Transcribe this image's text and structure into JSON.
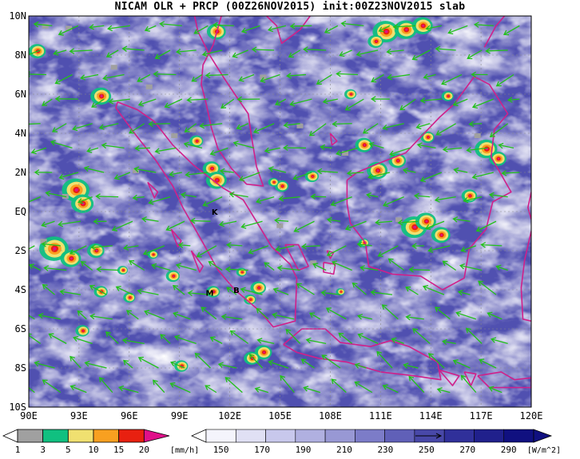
{
  "title": "NICAM OLR + PRCP (00Z26NOV2015) init:00Z23NOV2015 slab",
  "map": {
    "lon_range": [
      90,
      120
    ],
    "lat_range": [
      -10,
      10
    ],
    "x_ticks": [
      "90E",
      "93E",
      "96E",
      "99E",
      "102E",
      "105E",
      "108E",
      "111E",
      "114E",
      "117E",
      "120E"
    ],
    "y_ticks": [
      "10N",
      "8N",
      "6N",
      "4N",
      "2N",
      "EQ",
      "2S",
      "4S",
      "6S",
      "8S",
      "10S"
    ],
    "place_labels": [
      {
        "text": "K",
        "lon": 101.1,
        "lat": 0.0
      },
      {
        "text": "M",
        "lon": 100.8,
        "lat": -4.15
      },
      {
        "text": "B",
        "lon": 102.4,
        "lat": -4.0
      }
    ],
    "coastline_color": "#d0208a",
    "vector_color": "#22c01a"
  },
  "precip_colorbar": {
    "labels": [
      "1",
      "3",
      "5",
      "10",
      "15",
      "20"
    ],
    "unit": "[mm/h]",
    "colors": [
      "#a0a0a0",
      "#10c080",
      "#f0e070",
      "#f8a020",
      "#e82010",
      "#e0108a"
    ]
  },
  "olr_colorbar": {
    "labels": [
      "150",
      "170",
      "190",
      "210",
      "230",
      "250",
      "270",
      "290"
    ],
    "unit": "[W/m^2]",
    "colors": [
      "#f4f4fc",
      "#e0e0f4",
      "#c8c8ec",
      "#b0b0e0",
      "#9898d4",
      "#7c7cc8",
      "#6060b8",
      "#4848a8",
      "#30309a",
      "#20208c",
      "#101080"
    ]
  }
}
